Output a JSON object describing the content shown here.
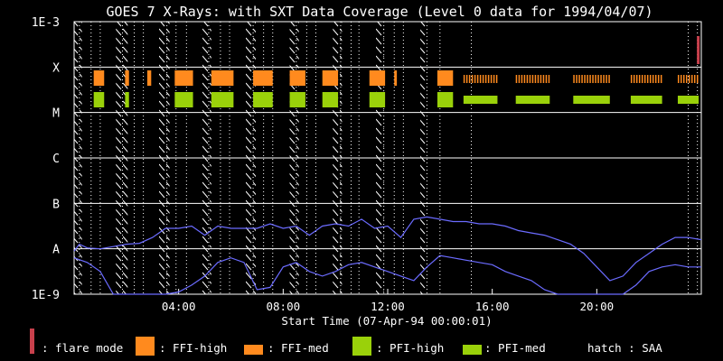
{
  "chart_data": {
    "type": "line",
    "title": "GOES 7 X-Rays: with SXT Data Coverage (Level 0 data for 1994/04/07)",
    "xlabel": "Start Time (07-Apr-94 00:00:01)",
    "xlim_hours": [
      0,
      24
    ],
    "x_ticks": [
      {
        "hour": 4,
        "label": "04:00"
      },
      {
        "hour": 8,
        "label": "08:00"
      },
      {
        "hour": 12,
        "label": "12:00"
      },
      {
        "hour": 16,
        "label": "16:00"
      },
      {
        "hour": 20,
        "label": "20:00"
      }
    ],
    "y_scale": "log",
    "ylim": [
      "1E-9",
      "1E-3"
    ],
    "y_ticks": [
      {
        "exp": -3,
        "label": "1E-3"
      },
      {
        "exp": -4,
        "label": "X"
      },
      {
        "exp": -5,
        "label": "M"
      },
      {
        "exp": -6,
        "label": "C"
      },
      {
        "exp": -7,
        "label": "B"
      },
      {
        "exp": -8,
        "label": "A"
      },
      {
        "exp": -9,
        "label": "1E-9"
      }
    ],
    "grid": "horizontal",
    "series": [
      {
        "color": "#6b6bff",
        "hours": [
          0.0,
          0.2,
          0.5,
          1.0,
          1.5,
          2.0,
          2.5,
          3.0,
          3.5,
          4.0,
          4.5,
          5.0,
          5.5,
          6.0,
          6.5,
          7.0,
          7.5,
          8.0,
          8.5,
          9.0,
          9.5,
          10.0,
          10.5,
          11.0,
          11.5,
          12.0,
          12.5,
          13.0,
          13.5,
          14.0,
          14.5,
          15.0,
          15.5,
          16.0,
          16.5,
          17.0,
          17.5,
          18.0,
          18.5,
          19.0,
          19.5,
          20.0,
          20.5,
          21.0,
          21.5,
          22.0,
          22.5,
          23.0,
          23.5,
          24.0
        ],
        "log_flux": [
          -8.05,
          -7.9,
          -7.98,
          -8.0,
          -7.95,
          -7.9,
          -7.88,
          -7.75,
          -7.55,
          -7.55,
          -7.5,
          -7.7,
          -7.5,
          -7.55,
          -7.55,
          -7.55,
          -7.45,
          -7.55,
          -7.5,
          -7.7,
          -7.5,
          -7.45,
          -7.5,
          -7.35,
          -7.55,
          -7.5,
          -7.75,
          -7.35,
          -7.3,
          -7.35,
          -7.4,
          -7.4,
          -7.45,
          -7.45,
          -7.5,
          -7.6,
          -7.65,
          -7.7,
          -7.8,
          -7.9,
          -8.1,
          -8.4,
          -8.7,
          -8.6,
          -8.3,
          -8.1,
          -7.9,
          -7.75,
          -7.75,
          -7.8
        ]
      },
      {
        "color": "#6b6bff",
        "hours": [
          0.0,
          0.5,
          1.0,
          1.5,
          2.0,
          2.5,
          3.0,
          3.5,
          4.0,
          4.5,
          5.0,
          5.5,
          6.0,
          6.5,
          7.0,
          7.5,
          8.0,
          8.5,
          9.0,
          9.5,
          10.0,
          10.5,
          11.0,
          11.5,
          12.0,
          12.5,
          13.0,
          13.5,
          14.0,
          14.5,
          15.0,
          15.5,
          16.0,
          16.5,
          17.0,
          17.5,
          18.0,
          18.5,
          19.0,
          19.5,
          20.0,
          20.5,
          21.0,
          21.5,
          22.0,
          22.5,
          23.0,
          23.5,
          24.0
        ],
        "log_flux": [
          -8.2,
          -8.3,
          -8.5,
          -9.0,
          -9.0,
          -9.0,
          -9.0,
          -9.0,
          -8.95,
          -8.8,
          -8.6,
          -8.3,
          -8.2,
          -8.3,
          -8.9,
          -8.85,
          -8.4,
          -8.3,
          -8.5,
          -8.6,
          -8.5,
          -8.35,
          -8.3,
          -8.4,
          -8.5,
          -8.6,
          -8.7,
          -8.4,
          -8.15,
          -8.2,
          -8.25,
          -8.3,
          -8.35,
          -8.5,
          -8.6,
          -8.7,
          -8.9,
          -9.0,
          -9.0,
          -9.0,
          -9.0,
          -9.0,
          -9.0,
          -8.8,
          -8.5,
          -8.4,
          -8.35,
          -8.4,
          -8.4
        ]
      }
    ],
    "coverage_rows": {
      "ffi_high": [
        [
          0.75,
          1.15
        ],
        [
          1.95,
          2.1
        ],
        [
          2.8,
          2.95
        ],
        [
          3.85,
          4.55
        ],
        [
          5.25,
          6.1
        ],
        [
          6.85,
          7.6
        ],
        [
          8.25,
          8.85
        ],
        [
          9.5,
          10.1
        ],
        [
          11.3,
          11.9
        ],
        [
          12.25,
          12.35
        ],
        [
          13.9,
          14.5
        ]
      ],
      "pfi_high": [
        [
          0.75,
          1.15
        ],
        [
          1.95,
          2.1
        ],
        [
          3.85,
          4.55
        ],
        [
          5.25,
          6.1
        ],
        [
          6.85,
          7.6
        ],
        [
          8.25,
          8.85
        ],
        [
          9.5,
          10.1
        ],
        [
          11.3,
          11.9
        ],
        [
          13.9,
          14.5
        ]
      ],
      "ffi_med_ticks": [
        [
          14.9,
          16.2
        ],
        [
          16.9,
          18.2
        ],
        [
          19.1,
          20.5
        ],
        [
          21.3,
          22.5
        ],
        [
          23.1,
          23.9
        ]
      ],
      "pfi_med": [
        [
          14.9,
          16.2
        ],
        [
          16.9,
          18.2
        ],
        [
          19.1,
          20.5
        ],
        [
          21.3,
          22.5
        ],
        [
          23.1,
          23.9
        ]
      ]
    },
    "flare_mode": [
      [
        23.9,
        24.0
      ]
    ],
    "saa_hatch": [
      [
        0.0,
        0.3
      ],
      [
        1.6,
        2.05
      ],
      [
        3.25,
        3.65
      ],
      [
        4.85,
        5.25
      ],
      [
        6.55,
        6.95
      ],
      [
        8.25,
        8.6
      ],
      [
        9.9,
        10.25
      ],
      [
        11.55,
        11.85
      ],
      [
        13.25,
        13.45
      ]
    ],
    "dotted_lines_hours": [
      0.2,
      0.65,
      1.0,
      1.85,
      2.3,
      2.65,
      3.55,
      3.9,
      4.3,
      5.15,
      5.6,
      5.95,
      6.85,
      7.25,
      7.6,
      8.5,
      8.9,
      9.25,
      10.2,
      10.6,
      10.9,
      11.85,
      12.25,
      12.6,
      13.5,
      14.0,
      15.2,
      23.5,
      23.85
    ],
    "colors": {
      "flare_mode": "#c8404c",
      "ffi_high": "#ff8a1e",
      "pfi_high": "#9ad10a",
      "flux": "#6b6bff",
      "grid": "#ffffff"
    },
    "legend": {
      "placement": "bottom",
      "items": [
        {
          "key": "flare_mode",
          "label": ": flare mode"
        },
        {
          "key": "ffi_high",
          "label": ": FFI-high"
        },
        {
          "key": "ffi_med",
          "label": ": FFI-med"
        },
        {
          "key": "pfi_high",
          "label": ": PFI-high"
        },
        {
          "key": "pfi_med",
          "label": ": PFI-med"
        },
        {
          "key": "saa",
          "label": "hatch : SAA"
        }
      ]
    }
  }
}
